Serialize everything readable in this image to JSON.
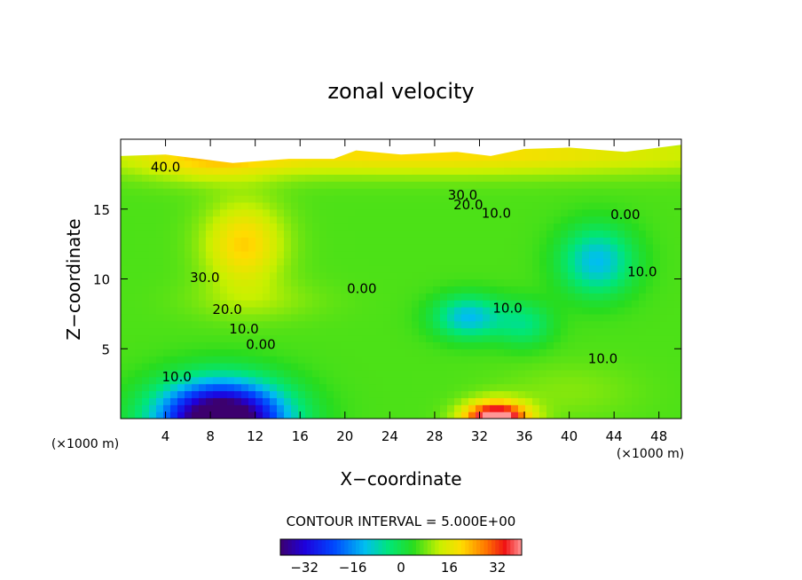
{
  "chart_data": {
    "type": "heatmap",
    "title": "zonal velocity",
    "xlabel": "X−coordinate",
    "ylabel": "Z−coordinate",
    "x_unit_left": "(×1000 m)",
    "x_unit_right": "(×1000 m)",
    "xlim": [
      0,
      50
    ],
    "ylim": [
      0,
      20
    ],
    "x_ticks": [
      4,
      8,
      12,
      16,
      20,
      24,
      28,
      32,
      36,
      40,
      44,
      48
    ],
    "y_ticks": [
      5,
      10,
      15
    ],
    "x_tick_labels": [
      "4",
      "8",
      "12",
      "16",
      "20",
      "24",
      "28",
      "32",
      "36",
      "40",
      "44",
      "48"
    ],
    "y_tick_labels": [
      "5",
      "10",
      "15"
    ],
    "contour_interval_text": "CONTOUR INTERVAL = 5.000E+00",
    "contour_interval": 5.0,
    "colorbar": {
      "range": [
        -40,
        40
      ],
      "ticks": [
        -32,
        -16,
        0,
        16,
        32
      ],
      "tick_labels": [
        "−32",
        "−16",
        "0",
        "16",
        "32"
      ]
    },
    "contour_labels": [
      {
        "text": "40.0",
        "x": 4.0,
        "z": 18.0
      },
      {
        "text": "30.0",
        "x": 30.5,
        "z": 16.0
      },
      {
        "text": "20.0",
        "x": 31.0,
        "z": 15.3
      },
      {
        "text": "10.0",
        "x": 33.5,
        "z": 14.7
      },
      {
        "text": "0.00",
        "x": 45.0,
        "z": 14.6
      },
      {
        "text": "30.0",
        "x": 7.5,
        "z": 10.1
      },
      {
        "text": "0.00",
        "x": 21.5,
        "z": 9.3
      },
      {
        "text": "20.0",
        "x": 9.5,
        "z": 7.8
      },
      {
        "text": "10.0",
        "x": 11.0,
        "z": 6.4
      },
      {
        "text": "0.00",
        "x": 12.5,
        "z": 5.3
      },
      {
        "text": "10.0",
        "x": 34.5,
        "z": 7.9
      },
      {
        "text": "10.0",
        "x": 46.5,
        "z": 10.5
      },
      {
        "text": "10.0",
        "x": 43.0,
        "z": 4.3
      },
      {
        "text": "10.0",
        "x": 5.0,
        "z": 3.0
      }
    ],
    "features": [
      {
        "x": 11,
        "z": 12.5,
        "sx": 3.5,
        "sz": 3.0,
        "amp": 15
      },
      {
        "x": 27,
        "z": 19,
        "sx": 30,
        "sz": 1.5,
        "amp": 14
      },
      {
        "x": 8,
        "z": 18.5,
        "sx": 6,
        "sz": 1.6,
        "amp": 8
      },
      {
        "x": 9,
        "z": 0,
        "sx": 5.5,
        "sz": 2.6,
        "amp": -58
      },
      {
        "x": 31,
        "z": 7.3,
        "sx": 3.0,
        "sz": 1.5,
        "amp": -18
      },
      {
        "x": 36,
        "z": 6.8,
        "sx": 2.5,
        "sz": 1.6,
        "amp": -10
      },
      {
        "x": 42.5,
        "z": 11.3,
        "sx": 3.2,
        "sz": 2.4,
        "amp": -18
      },
      {
        "x": 33.5,
        "z": 0,
        "sx": 2.8,
        "sz": 1.2,
        "amp": 42
      },
      {
        "x": 12,
        "z": 8.5,
        "sx": 6,
        "sz": 1.5,
        "amp": 4
      },
      {
        "x": 40,
        "z": 2,
        "sx": 6,
        "sz": 2,
        "amp": 3
      }
    ],
    "background_value": 6
  }
}
